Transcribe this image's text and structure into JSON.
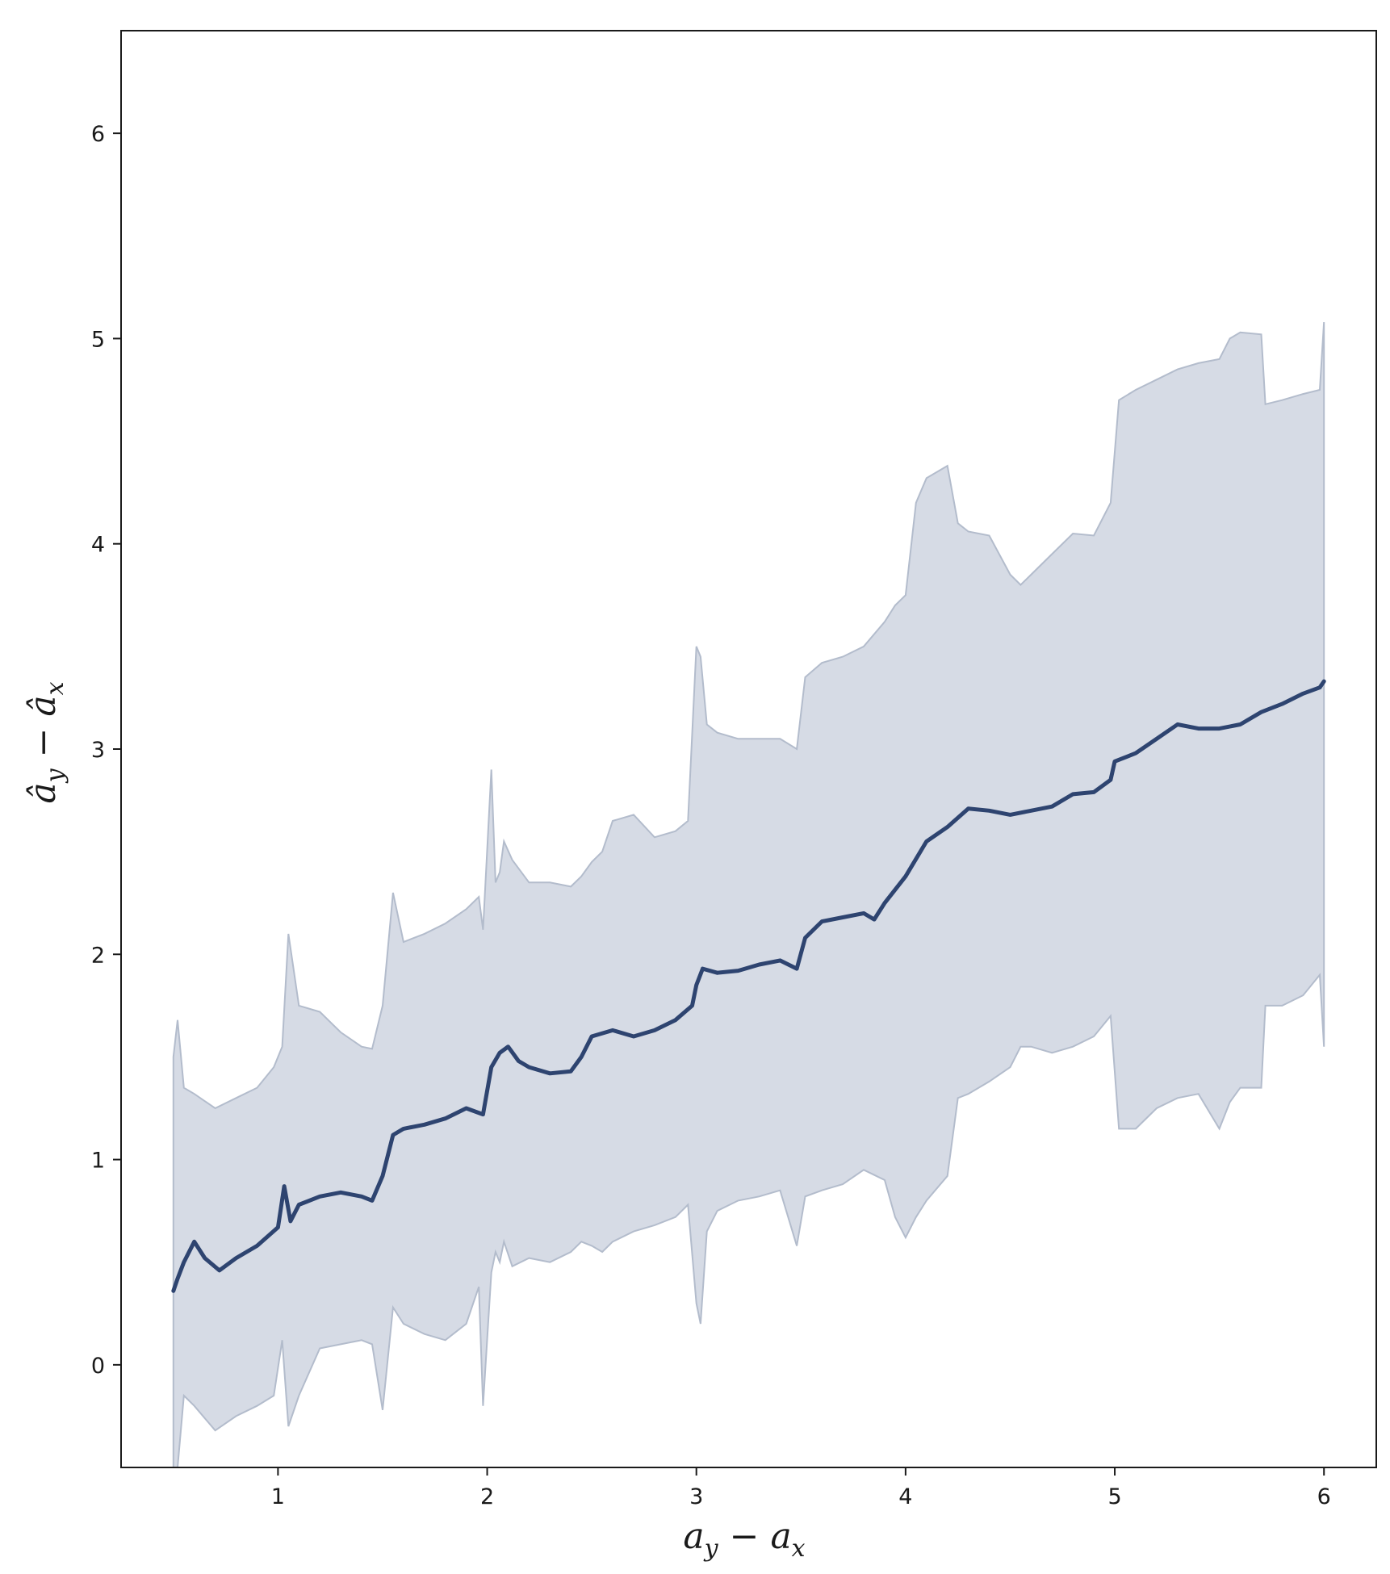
{
  "chart_data": {
    "type": "line",
    "xlabel_main": "a",
    "xlabel_sub1": "y",
    "xlabel_op": " − ",
    "xlabel_sub2": "x",
    "ylabel_main": "â",
    "ylabel_sub1": "y",
    "ylabel_op": " − ",
    "ylabel_sub2": "x",
    "xlim": [
      0.25,
      6.25
    ],
    "ylim": [
      -0.5,
      6.5
    ],
    "xticks": [
      1,
      2,
      3,
      4,
      5,
      6
    ],
    "xtick_labels": [
      "1",
      "2",
      "3",
      "4",
      "5",
      "6"
    ],
    "yticks": [
      0,
      1,
      2,
      3,
      4,
      5,
      6
    ],
    "ytick_labels": [
      "0",
      "1",
      "2",
      "3",
      "4",
      "5",
      "6"
    ],
    "grid": false,
    "colors": {
      "line": "#2e4470",
      "band_fill": "#d6dbe5",
      "band_edge": "#b3bccc"
    },
    "series": [
      {
        "x": [
          0.5,
          0.52,
          0.55,
          0.6,
          0.65,
          0.72,
          0.8,
          0.9,
          1.0,
          1.03,
          1.06,
          1.1,
          1.2,
          1.3,
          1.4,
          1.45,
          1.5,
          1.55,
          1.6,
          1.7,
          1.8,
          1.9,
          1.98,
          2.02,
          2.06,
          2.1,
          2.15,
          2.2,
          2.3,
          2.4,
          2.45,
          2.5,
          2.6,
          2.7,
          2.8,
          2.9,
          2.98,
          3.0,
          3.03,
          3.1,
          3.2,
          3.3,
          3.4,
          3.48,
          3.52,
          3.6,
          3.7,
          3.8,
          3.85,
          3.9,
          4.0,
          4.1,
          4.2,
          4.3,
          4.4,
          4.5,
          4.6,
          4.7,
          4.8,
          4.9,
          4.98,
          5.0,
          5.1,
          5.2,
          5.3,
          5.4,
          5.5,
          5.6,
          5.7,
          5.8,
          5.9,
          5.98,
          6.0
        ],
        "y": [
          0.36,
          0.42,
          0.5,
          0.6,
          0.52,
          0.46,
          0.52,
          0.58,
          0.67,
          0.87,
          0.7,
          0.78,
          0.82,
          0.84,
          0.82,
          0.8,
          0.92,
          1.12,
          1.15,
          1.17,
          1.2,
          1.25,
          1.22,
          1.45,
          1.52,
          1.55,
          1.48,
          1.45,
          1.42,
          1.43,
          1.5,
          1.6,
          1.63,
          1.6,
          1.63,
          1.68,
          1.75,
          1.85,
          1.93,
          1.91,
          1.92,
          1.95,
          1.97,
          1.93,
          2.08,
          2.16,
          2.18,
          2.2,
          2.17,
          2.25,
          2.38,
          2.55,
          2.62,
          2.71,
          2.7,
          2.68,
          2.7,
          2.72,
          2.78,
          2.79,
          2.85,
          2.94,
          2.98,
          3.05,
          3.12,
          3.1,
          3.1,
          3.12,
          3.18,
          3.22,
          3.27,
          3.3,
          3.33
        ]
      }
    ],
    "band": {
      "x": [
        0.5,
        0.52,
        0.55,
        0.6,
        0.7,
        0.8,
        0.9,
        0.98,
        1.02,
        1.05,
        1.1,
        1.2,
        1.3,
        1.4,
        1.45,
        1.5,
        1.55,
        1.6,
        1.7,
        1.8,
        1.9,
        1.96,
        1.98,
        2.02,
        2.04,
        2.06,
        2.08,
        2.12,
        2.2,
        2.3,
        2.4,
        2.45,
        2.5,
        2.55,
        2.6,
        2.7,
        2.8,
        2.9,
        2.96,
        3.0,
        3.02,
        3.05,
        3.1,
        3.2,
        3.3,
        3.4,
        3.48,
        3.52,
        3.6,
        3.7,
        3.8,
        3.9,
        3.95,
        4.0,
        4.05,
        4.1,
        4.2,
        4.25,
        4.3,
        4.4,
        4.5,
        4.55,
        4.6,
        4.7,
        4.8,
        4.9,
        4.98,
        5.02,
        5.1,
        5.2,
        5.3,
        5.4,
        5.5,
        5.55,
        5.6,
        5.7,
        5.72,
        5.8,
        5.9,
        5.98,
        6.0
      ],
      "upper": [
        1.5,
        1.68,
        1.35,
        1.32,
        1.25,
        1.3,
        1.35,
        1.45,
        1.55,
        2.1,
        1.75,
        1.72,
        1.62,
        1.55,
        1.54,
        1.75,
        2.3,
        2.06,
        2.1,
        2.15,
        2.22,
        2.28,
        2.12,
        2.9,
        2.35,
        2.4,
        2.55,
        2.46,
        2.35,
        2.35,
        2.33,
        2.38,
        2.45,
        2.5,
        2.65,
        2.68,
        2.57,
        2.6,
        2.65,
        3.5,
        3.45,
        3.12,
        3.08,
        3.05,
        3.05,
        3.05,
        3.0,
        3.35,
        3.42,
        3.45,
        3.5,
        3.62,
        3.7,
        3.75,
        4.2,
        4.32,
        4.38,
        4.1,
        4.06,
        4.04,
        3.85,
        3.8,
        3.85,
        3.95,
        4.05,
        4.04,
        4.2,
        4.7,
        4.75,
        4.8,
        4.85,
        4.88,
        4.9,
        5.0,
        5.03,
        5.02,
        4.68,
        4.7,
        4.73,
        4.75,
        5.08
      ],
      "lower": [
        -0.5,
        -0.55,
        -0.15,
        -0.2,
        -0.32,
        -0.25,
        -0.2,
        -0.15,
        0.12,
        -0.3,
        -0.15,
        0.08,
        0.1,
        0.12,
        0.1,
        -0.22,
        0.28,
        0.2,
        0.15,
        0.12,
        0.2,
        0.38,
        -0.2,
        0.45,
        0.55,
        0.5,
        0.6,
        0.48,
        0.52,
        0.5,
        0.55,
        0.6,
        0.58,
        0.55,
        0.6,
        0.65,
        0.68,
        0.72,
        0.78,
        0.3,
        0.2,
        0.65,
        0.75,
        0.8,
        0.82,
        0.85,
        0.58,
        0.82,
        0.85,
        0.88,
        0.95,
        0.9,
        0.72,
        0.62,
        0.72,
        0.8,
        0.92,
        1.3,
        1.32,
        1.38,
        1.45,
        1.55,
        1.55,
        1.52,
        1.55,
        1.6,
        1.7,
        1.15,
        1.15,
        1.25,
        1.3,
        1.32,
        1.15,
        1.28,
        1.35,
        1.35,
        1.75,
        1.75,
        1.8,
        1.9,
        1.55
      ]
    }
  }
}
